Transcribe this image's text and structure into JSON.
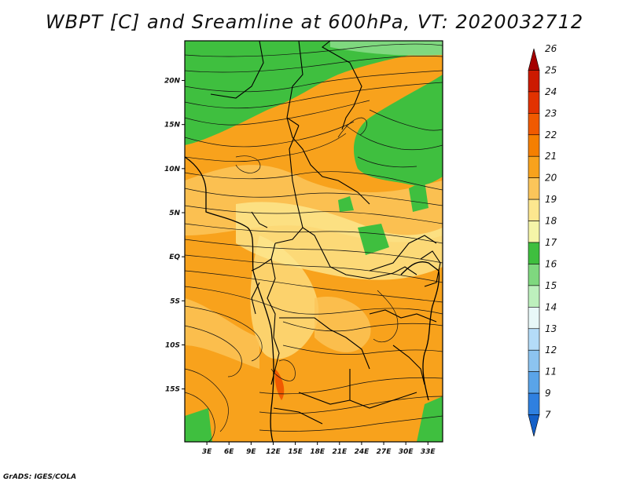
{
  "title": "WBPT [C] and Sreamline at 600hPa, VT: 2020032712",
  "credit": "GrADS: IGES/COLA",
  "map": {
    "lat_range": [
      -21,
      24.5
    ],
    "lon_range": [
      0,
      35
    ],
    "lat_ticks": [
      {
        "value": 20,
        "label": "20N"
      },
      {
        "value": 15,
        "label": "15N"
      },
      {
        "value": 10,
        "label": "10N"
      },
      {
        "value": 5,
        "label": "5N"
      },
      {
        "value": 0,
        "label": "EQ"
      },
      {
        "value": -5,
        "label": "5S"
      },
      {
        "value": -10,
        "label": "10S"
      },
      {
        "value": -15,
        "label": "15S"
      }
    ],
    "lon_ticks": [
      {
        "value": 3,
        "label": "3E"
      },
      {
        "value": 6,
        "label": "6E"
      },
      {
        "value": 9,
        "label": "9E"
      },
      {
        "value": 12,
        "label": "12E"
      },
      {
        "value": 15,
        "label": "15E"
      },
      {
        "value": 18,
        "label": "18E"
      },
      {
        "value": 21,
        "label": "21E"
      },
      {
        "value": 24,
        "label": "24E"
      },
      {
        "value": 27,
        "label": "27E"
      },
      {
        "value": 30,
        "label": "30E"
      },
      {
        "value": 33,
        "label": "33E"
      }
    ]
  },
  "colorbar": {
    "levels": [
      "26",
      "25",
      "24",
      "23",
      "22",
      "21",
      "20",
      "19",
      "18",
      "17",
      "16",
      "15",
      "14",
      "13",
      "12",
      "11",
      "9",
      "7"
    ],
    "colors": [
      "#a50000",
      "#cc1a00",
      "#e23200",
      "#f05a00",
      "#f57f00",
      "#f8a21c",
      "#fbc55a",
      "#fde78f",
      "#f5f5a8",
      "#3fbf3f",
      "#7fd87f",
      "#bdf0bd",
      "#e8f8f8",
      "#b4dcf8",
      "#8cc4f0",
      "#5aa4e8",
      "#2f80e0",
      "#1460c8"
    ]
  }
}
